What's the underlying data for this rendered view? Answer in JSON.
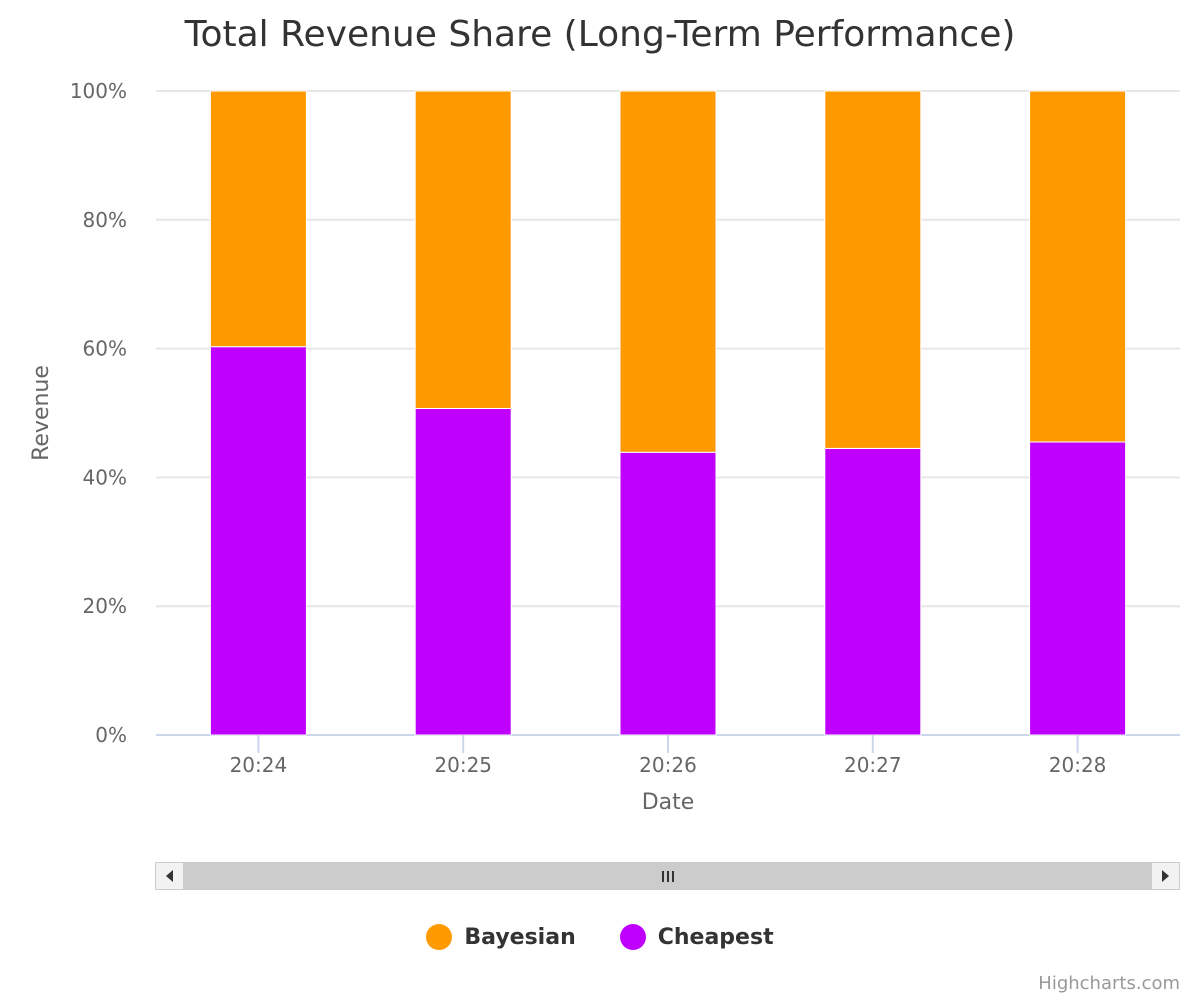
{
  "chart_data": {
    "type": "bar",
    "stacking": "percent",
    "title": "Total Revenue Share (Long-Term Performance)",
    "xlabel": "Date",
    "ylabel": "Revenue",
    "categories": [
      "20:24",
      "20:25",
      "20:26",
      "20:27",
      "20:28"
    ],
    "yticks": [
      "0%",
      "20%",
      "40%",
      "60%",
      "80%",
      "100%"
    ],
    "ylim": [
      0,
      100
    ],
    "grid": true,
    "legend_position": "bottom-center",
    "series": [
      {
        "name": "Cheapest",
        "color": "#bf00ff",
        "values": [
          60.3,
          50.7,
          43.9,
          44.5,
          45.5
        ]
      },
      {
        "name": "Bayesian",
        "color": "#ff9900",
        "values": [
          39.7,
          49.3,
          56.1,
          55.5,
          54.5
        ]
      }
    ]
  },
  "legend": {
    "items": [
      {
        "label": "Bayesian",
        "color": "#ff9900"
      },
      {
        "label": "Cheapest",
        "color": "#bf00ff"
      }
    ]
  },
  "scrollbar": {
    "left_icon": "chevron-left-icon",
    "right_icon": "chevron-right-icon",
    "grip_icon": "grip-icon"
  },
  "credits": "Highcharts.com"
}
